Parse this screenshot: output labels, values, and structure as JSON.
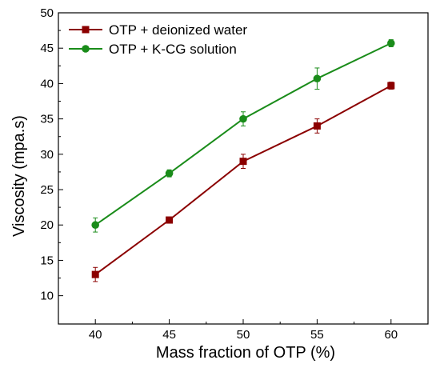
{
  "chart_data": {
    "type": "line",
    "title": "",
    "xlabel": "Mass fraction of OTP (%)",
    "ylabel": "Viscosity (mpa.s)",
    "x": [
      40,
      45,
      50,
      55,
      60
    ],
    "xlim": [
      37.5,
      62.5
    ],
    "ylim": [
      6,
      50
    ],
    "xticks": [
      40,
      45,
      50,
      55,
      60
    ],
    "yticks": [
      10,
      15,
      20,
      25,
      30,
      35,
      40,
      45,
      50
    ],
    "grid": false,
    "legend_position": "top-left",
    "series": [
      {
        "name": "OTP + deionized water",
        "values": [
          13.0,
          20.7,
          29.0,
          34.0,
          39.7
        ],
        "errors": [
          1.0,
          0.4,
          1.0,
          1.0,
          0.5
        ],
        "marker": "square",
        "color": "#8b0000"
      },
      {
        "name": "OTP + K-CG solution",
        "values": [
          20.0,
          27.3,
          35.0,
          40.7,
          45.7
        ],
        "errors": [
          1.0,
          0.5,
          1.0,
          1.5,
          0.5
        ],
        "marker": "circle",
        "color": "#1a8c1a"
      }
    ]
  }
}
